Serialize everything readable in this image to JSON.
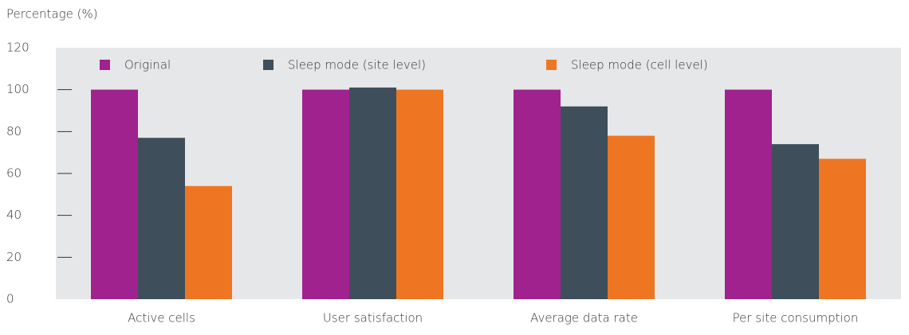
{
  "chart_data": {
    "type": "bar",
    "y_label": "Percentage (%)",
    "categories": [
      "Active cells",
      "User satisfaction",
      "Average data rate",
      "Per site consumption"
    ],
    "series": [
      {
        "name": "Original",
        "color": "#a0228e",
        "values": [
          100,
          100,
          100,
          100
        ]
      },
      {
        "name": "Sleep mode (site level)",
        "color": "#3e4e5a",
        "values": [
          77,
          101,
          92,
          74
        ]
      },
      {
        "name": "Sleep mode (cell level)",
        "color": "#ee7622",
        "values": [
          54,
          100,
          78,
          67
        ]
      }
    ],
    "ylim": [
      0,
      120
    ],
    "yticks": [
      0,
      20,
      40,
      60,
      80,
      100,
      120
    ],
    "legend": "top"
  }
}
